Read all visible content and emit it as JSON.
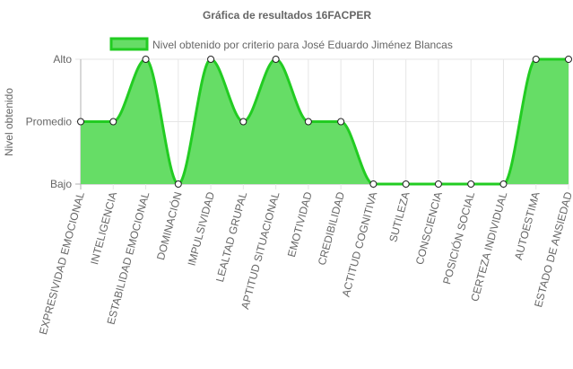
{
  "chart_data": {
    "type": "area",
    "title": "Gráfica de resultados 16FACPER",
    "ylabel": "Nivel obtenido",
    "xlabel": "",
    "y_categories": [
      "Bajo",
      "Promedio",
      "Alto"
    ],
    "ylim": [
      0,
      2
    ],
    "legend_position": "top",
    "grid": true,
    "categories": [
      "EXPRESIVIDAD EMOCIONAL",
      "INTELIGENCIA",
      "ESTABILIDAD EMOCIONAL",
      "DOMINACIÓN",
      "IMPULSIVIDAD",
      "LEALTAD GRUPAL",
      "APTITUD SITUACIONAL",
      "EMOTIVIDAD",
      "CREDIBILIDAD",
      "ACTITUD COGNITIVA",
      "SUTILEZA",
      "CONSCIENCIA",
      "POSICIÓN SOCIAL",
      "CERTEZA INDIVIDUAL",
      "AUTOESTIMA",
      "ESTADO DE ANSIEDAD"
    ],
    "series": [
      {
        "name": "Nivel obtenido por criterio para José Eduardo Jiménez Blancas",
        "values": [
          1,
          1,
          2,
          0,
          2,
          1,
          2,
          1,
          1,
          0,
          0,
          0,
          0,
          0,
          2,
          2
        ],
        "fill_color": "#66dd66",
        "line_color": "#22cc22",
        "point_color": "#ffffff"
      }
    ]
  }
}
